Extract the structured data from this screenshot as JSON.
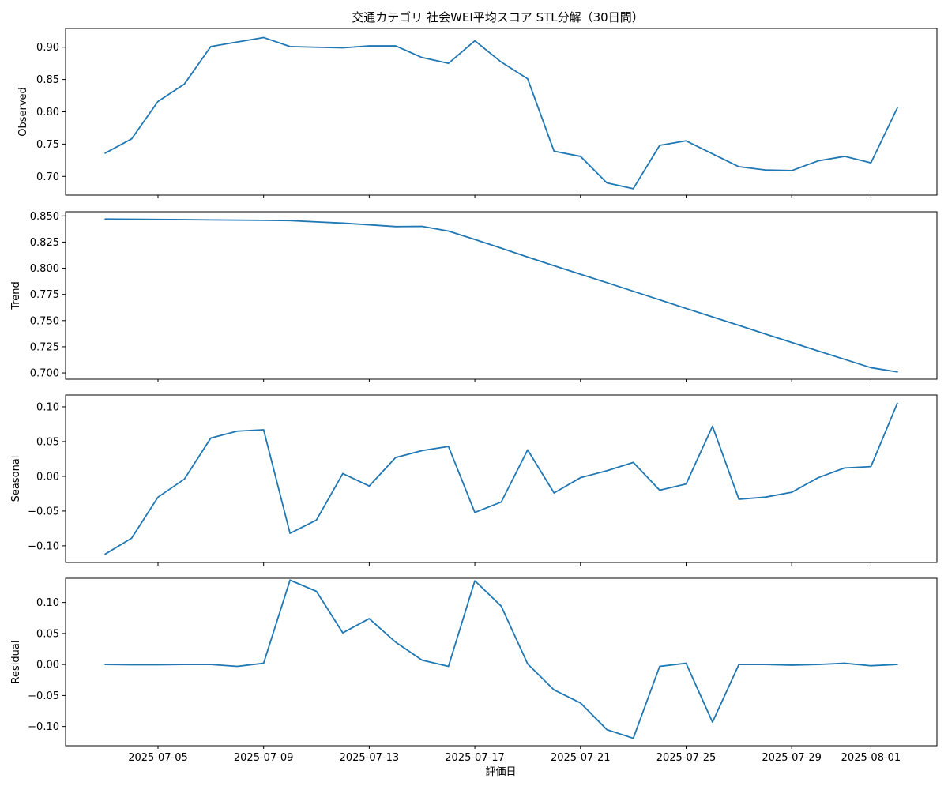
{
  "chart_data": {
    "type": "line",
    "title": "交通カテゴリ 社会WEI平均スコア STL分解（30日間）",
    "xlabel": "評価日",
    "x_tick_labels": [
      "2025-07-05",
      "2025-07-09",
      "2025-07-13",
      "2025-07-17",
      "2025-07-21",
      "2025-07-25",
      "2025-07-29",
      "2025-08-01"
    ],
    "x_tick_dates": [
      "2025-07-05",
      "2025-07-09",
      "2025-07-13",
      "2025-07-17",
      "2025-07-21",
      "2025-07-25",
      "2025-07-29",
      "2025-08-01"
    ],
    "dates": [
      "2025-07-03",
      "2025-07-04",
      "2025-07-05",
      "2025-07-06",
      "2025-07-07",
      "2025-07-08",
      "2025-07-09",
      "2025-07-10",
      "2025-07-11",
      "2025-07-12",
      "2025-07-13",
      "2025-07-14",
      "2025-07-15",
      "2025-07-16",
      "2025-07-17",
      "2025-07-18",
      "2025-07-19",
      "2025-07-20",
      "2025-07-21",
      "2025-07-22",
      "2025-07-23",
      "2025-07-24",
      "2025-07-25",
      "2025-07-26",
      "2025-07-27",
      "2025-07-28",
      "2025-07-29",
      "2025-07-30",
      "2025-07-31",
      "2025-08-01",
      "2025-08-02"
    ],
    "line_color": "#1f77b4",
    "panels": [
      {
        "ylabel": "Observed",
        "ylim": [
          0.671,
          0.929
        ],
        "y_ticks": [
          0.7,
          0.75,
          0.8,
          0.85,
          0.9
        ],
        "y_tick_labels": [
          "0.70",
          "0.75",
          "0.80",
          "0.85",
          "0.90"
        ],
        "values": [
          0.736,
          0.758,
          0.816,
          0.843,
          0.901,
          0.908,
          0.915,
          0.901,
          0.9,
          0.899,
          0.902,
          0.902,
          0.884,
          0.875,
          0.91,
          0.877,
          0.851,
          0.739,
          0.731,
          0.69,
          0.681,
          0.748,
          0.755,
          0.735,
          0.715,
          0.71,
          0.709,
          0.724,
          0.731,
          0.721,
          0.806
        ]
      },
      {
        "ylabel": "Trend",
        "ylim": [
          0.694,
          0.854
        ],
        "y_ticks": [
          0.7,
          0.725,
          0.75,
          0.775,
          0.8,
          0.825,
          0.85
        ],
        "y_tick_labels": [
          "0.700",
          "0.725",
          "0.750",
          "0.775",
          "0.800",
          "0.825",
          "0.850"
        ],
        "values": [
          0.847,
          0.8468,
          0.8466,
          0.8464,
          0.8462,
          0.846,
          0.8458,
          0.8455,
          0.8443,
          0.8431,
          0.8415,
          0.8398,
          0.84,
          0.8355,
          0.8275,
          0.8192,
          0.8107,
          0.8024,
          0.7943,
          0.7862,
          0.778,
          0.7698,
          0.7616,
          0.7535,
          0.7454,
          0.7372,
          0.7291,
          0.721,
          0.713,
          0.705,
          0.701
        ]
      },
      {
        "ylabel": "Seasonal",
        "ylim": [
          -0.124,
          0.117
        ],
        "y_ticks": [
          -0.1,
          -0.05,
          0.0,
          0.05,
          0.1
        ],
        "y_tick_labels": [
          "−0.10",
          "−0.05",
          "0.00",
          "0.05",
          "0.10"
        ],
        "values": [
          -0.112,
          -0.089,
          -0.03,
          -0.004,
          0.055,
          0.065,
          0.067,
          -0.082,
          -0.063,
          0.004,
          -0.014,
          0.027,
          0.037,
          0.043,
          -0.052,
          -0.037,
          0.038,
          -0.024,
          -0.002,
          0.008,
          0.02,
          -0.02,
          -0.011,
          0.072,
          -0.033,
          -0.03,
          -0.023,
          -0.002,
          0.012,
          0.014,
          0.105
        ]
      },
      {
        "ylabel": "Residual",
        "ylim": [
          -0.131,
          0.139
        ],
        "y_ticks": [
          -0.1,
          -0.05,
          0.0,
          0.05,
          0.1
        ],
        "y_tick_labels": [
          "−0.10",
          "−0.05",
          "0.00",
          "0.05",
          "0.10"
        ],
        "values": [
          0.0,
          -0.0005,
          -0.0005,
          0.0,
          0.0,
          -0.003,
          0.002,
          0.136,
          0.118,
          0.051,
          0.074,
          0.036,
          0.007,
          -0.003,
          0.135,
          0.094,
          0.001,
          -0.041,
          -0.062,
          -0.105,
          -0.119,
          -0.003,
          0.002,
          -0.093,
          0.0,
          0.0,
          -0.001,
          0.0,
          0.002,
          -0.002,
          0.0
        ]
      }
    ]
  }
}
